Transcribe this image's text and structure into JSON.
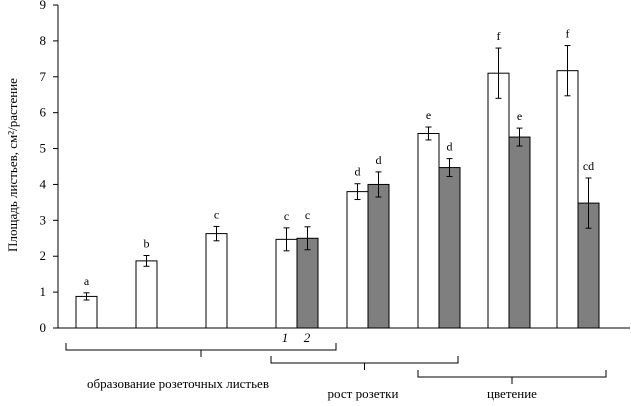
{
  "chart_data": {
    "type": "bar",
    "ylabel": "Площадь листьев, см²/растение",
    "ylim": [
      0,
      9
    ],
    "yticks": [
      "0",
      "1",
      "2",
      "3",
      "4",
      "5",
      "6",
      "7",
      "8",
      "9"
    ],
    "legend": {
      "white": "1",
      "gray": "2"
    },
    "colors": {
      "series1": "#ffffff",
      "series2": "#7f7f7f",
      "stroke": "#000000"
    },
    "groups": [
      {
        "label": "образование розеточных листьев"
      },
      {
        "label": "рост розетки"
      },
      {
        "label": "цветение"
      }
    ],
    "points": [
      {
        "white": 0.88,
        "white_err": 0.1,
        "white_sig": "a",
        "gray": null,
        "gray_err": null,
        "gray_sig": ""
      },
      {
        "white": 1.87,
        "white_err": 0.15,
        "white_sig": "b",
        "gray": null,
        "gray_err": null,
        "gray_sig": ""
      },
      {
        "white": 2.63,
        "white_err": 0.2,
        "white_sig": "c",
        "gray": null,
        "gray_err": null,
        "gray_sig": ""
      },
      {
        "white": 2.47,
        "white_err": 0.32,
        "white_sig": "c",
        "gray": 2.5,
        "gray_err": 0.32,
        "gray_sig": "c"
      },
      {
        "white": 3.8,
        "white_err": 0.22,
        "white_sig": "d",
        "gray": 4.0,
        "gray_err": 0.35,
        "gray_sig": "d"
      },
      {
        "white": 5.42,
        "white_err": 0.18,
        "white_sig": "e",
        "gray": 4.47,
        "gray_err": 0.25,
        "gray_sig": "d"
      },
      {
        "white": 7.1,
        "white_err": 0.7,
        "white_sig": "f",
        "gray": 5.32,
        "gray_err": 0.25,
        "gray_sig": "e"
      },
      {
        "white": 7.17,
        "white_err": 0.7,
        "white_sig": "f",
        "gray": 3.48,
        "gray_err": 0.7,
        "gray_sig": "cd"
      }
    ]
  }
}
